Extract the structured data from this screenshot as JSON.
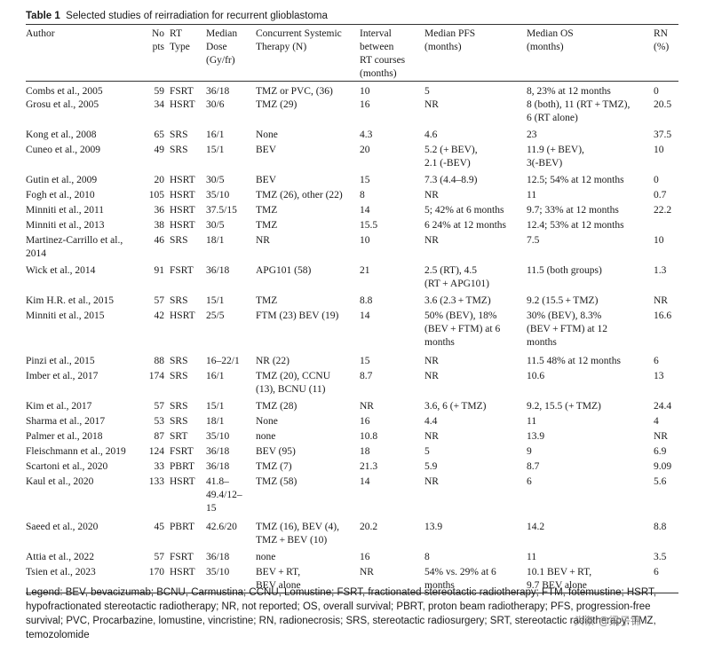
{
  "table": {
    "label": "Table 1",
    "caption": "Selected studies of reirradiation for recurrent glioblastoma",
    "headers": {
      "author": "Author",
      "pts": [
        "No",
        "pts"
      ],
      "rt_type": [
        "RT",
        "Type"
      ],
      "dose": [
        "Median",
        "Dose",
        "(Gy/fr)"
      ],
      "therapy": [
        "Concurrent Systemic",
        "Therapy (N)"
      ],
      "interval": [
        "Interval",
        "between",
        "RT courses",
        "(months)"
      ],
      "pfs": [
        "Median PFS",
        "(months)"
      ],
      "os": [
        "Median OS",
        "(months)"
      ],
      "rn": [
        "RN",
        "(%)"
      ]
    },
    "rows": [
      {
        "author": [
          "Combs et al., 2005"
        ],
        "pts": "59",
        "rt": "FSRT",
        "dose": [
          "36/18"
        ],
        "therapy": [
          "TMZ or PVC, (36)"
        ],
        "interval": "10",
        "pfs": [
          "5"
        ],
        "os": [
          "8, 23% at 12 months"
        ],
        "rn": "0"
      },
      {
        "author": [
          "Grosu et al., 2005"
        ],
        "pts": "34",
        "rt": "HSRT",
        "dose": [
          "30/6"
        ],
        "therapy": [
          "TMZ (29)"
        ],
        "interval": "16",
        "pfs": [
          "NR"
        ],
        "os": [
          "8 (both), 11 (RT + TMZ),",
          "6 (RT alone)"
        ],
        "rn": "20.5"
      },
      {
        "author": [
          "Kong et al., 2008"
        ],
        "pts": "65",
        "rt": "SRS",
        "dose": [
          "16/1"
        ],
        "therapy": [
          "None"
        ],
        "interval": "4.3",
        "pfs": [
          "4.6"
        ],
        "os": [
          "23"
        ],
        "rn": "37.5"
      },
      {
        "author": [
          "Cuneo et al., 2009"
        ],
        "pts": "49",
        "rt": "SRS",
        "dose": [
          "15/1"
        ],
        "therapy": [
          "BEV"
        ],
        "interval": "20",
        "pfs": [
          "5.2 (+ BEV),",
          "2.1 (-BEV)"
        ],
        "os": [
          "11.9 (+ BEV),",
          "3(-BEV)"
        ],
        "rn": "10"
      },
      {
        "author": [
          "Gutin et al., 2009"
        ],
        "pts": "20",
        "rt": "HSRT",
        "dose": [
          "30/5"
        ],
        "therapy": [
          "BEV"
        ],
        "interval": "15",
        "pfs": [
          "7.3 (4.4–8.9)"
        ],
        "os": [
          "12.5; 54% at 12 months"
        ],
        "rn": "0"
      },
      {
        "author": [
          "Fogh et al., 2010"
        ],
        "pts": "105",
        "rt": "HSRT",
        "dose": [
          "35/10"
        ],
        "therapy": [
          "TMZ (26), other (22)"
        ],
        "interval": "8",
        "pfs": [
          "NR"
        ],
        "os": [
          "11"
        ],
        "rn": "0.7"
      },
      {
        "author": [
          "Minniti et al., 2011"
        ],
        "pts": "36",
        "rt": "HSRT",
        "dose": [
          "37.5/15"
        ],
        "therapy": [
          "TMZ"
        ],
        "interval": "14",
        "pfs": [
          "5; 42% at 6 months"
        ],
        "os": [
          "9.7; 33% at 12 months"
        ],
        "rn": "22.2"
      },
      {
        "author": [
          "Minniti et al., 2013"
        ],
        "pts": "38",
        "rt": "HSRT",
        "dose": [
          "30/5"
        ],
        "therapy": [
          "TMZ"
        ],
        "interval": "15.5",
        "pfs": [
          "6 24% at 12 months"
        ],
        "os": [
          "12.4; 53% at 12 months"
        ],
        "rn": ""
      },
      {
        "author": [
          "Martinez-Carrillo et al.,",
          "2014"
        ],
        "pts": "46",
        "rt": "SRS",
        "dose": [
          "18/1"
        ],
        "therapy": [
          "NR"
        ],
        "interval": "10",
        "pfs": [
          "NR"
        ],
        "os": [
          "7.5"
        ],
        "rn": "10"
      },
      {
        "author": [
          "Wick et al., 2014"
        ],
        "pts": "91",
        "rt": "FSRT",
        "dose": [
          "36/18"
        ],
        "therapy": [
          "APG101 (58)"
        ],
        "interval": "21",
        "pfs": [
          "2.5 (RT), 4.5",
          "(RT + APG101)"
        ],
        "os": [
          "11.5 (both groups)"
        ],
        "rn": "1.3"
      },
      {
        "author": [
          "Kim H.R. et al., 2015"
        ],
        "pts": "57",
        "rt": "SRS",
        "dose": [
          "15/1"
        ],
        "therapy": [
          "TMZ"
        ],
        "interval": "8.8",
        "pfs": [
          "3.6 (2.3 + TMZ)"
        ],
        "os": [
          "9.2 (15.5 + TMZ)"
        ],
        "rn": "NR"
      },
      {
        "author": [
          "Minniti et al., 2015"
        ],
        "pts": "42",
        "rt": "HSRT",
        "dose": [
          "25/5"
        ],
        "therapy": [
          "FTM (23) BEV (19)"
        ],
        "interval": "14",
        "pfs": [
          "50% (BEV), 18%",
          "(BEV + FTM) at 6",
          "months"
        ],
        "os": [
          "30% (BEV), 8.3%",
          "(BEV + FTM) at 12",
          "months"
        ],
        "rn": "16.6"
      },
      {
        "author": [
          "Pinzi et al., 2015"
        ],
        "pts": "88",
        "rt": "SRS",
        "dose": [
          "16–22/1"
        ],
        "therapy": [
          "NR (22)"
        ],
        "interval": "15",
        "pfs": [
          "NR"
        ],
        "os": [
          "11.5 48% at 12 months"
        ],
        "rn": "6"
      },
      {
        "author": [
          "Imber et al., 2017"
        ],
        "pts": "174",
        "rt": "SRS",
        "dose": [
          "16/1"
        ],
        "therapy": [
          "TMZ (20), CCNU",
          "(13), BCNU (11)"
        ],
        "interval": "8.7",
        "pfs": [
          "NR"
        ],
        "os": [
          "10.6"
        ],
        "rn": "13"
      },
      {
        "author": [
          "Kim et al., 2017"
        ],
        "pts": "57",
        "rt": "SRS",
        "dose": [
          "15/1"
        ],
        "therapy": [
          "TMZ (28)"
        ],
        "interval": "NR",
        "pfs": [
          "3.6, 6 (+ TMZ)"
        ],
        "os": [
          "9.2, 15.5 (+ TMZ)"
        ],
        "rn": "24.4"
      },
      {
        "author": [
          "Sharma et al., 2017"
        ],
        "pts": "53",
        "rt": "SRS",
        "dose": [
          "18/1"
        ],
        "therapy": [
          "None"
        ],
        "interval": "16",
        "pfs": [
          "4.4"
        ],
        "os": [
          "11"
        ],
        "rn": "4"
      },
      {
        "author": [
          "Palmer et al., 2018"
        ],
        "pts": "87",
        "rt": "SRT",
        "dose": [
          "35/10"
        ],
        "therapy": [
          "none"
        ],
        "interval": "10.8",
        "pfs": [
          "NR"
        ],
        "os": [
          "13.9"
        ],
        "rn": "NR"
      },
      {
        "author": [
          "Fleischmann et al., 2019"
        ],
        "pts": "124",
        "rt": "FSRT",
        "dose": [
          "36/18"
        ],
        "therapy": [
          "BEV (95)"
        ],
        "interval": "18",
        "pfs": [
          "5"
        ],
        "os": [
          "9"
        ],
        "rn": "6.9"
      },
      {
        "author": [
          "Scartoni et al., 2020"
        ],
        "pts": "33",
        "rt": "PBRT",
        "dose": [
          "36/18"
        ],
        "therapy": [
          "TMZ (7)"
        ],
        "interval": "21.3",
        "pfs": [
          "5.9"
        ],
        "os": [
          "8.7"
        ],
        "rn": "9.09"
      },
      {
        "author": [
          "Kaul et al., 2020"
        ],
        "pts": "133",
        "rt": "HSRT",
        "dose": [
          "41.8–",
          "49.4/12–",
          "15"
        ],
        "therapy": [
          "TMZ (58)"
        ],
        "interval": "14",
        "pfs": [
          "NR"
        ],
        "os": [
          "6"
        ],
        "rn": "5.6"
      },
      {
        "author": [
          "Saeed et al., 2020"
        ],
        "pts": "45",
        "rt": "PBRT",
        "dose": [
          "42.6/20"
        ],
        "therapy": [
          "TMZ (16), BEV (4),",
          "TMZ + BEV (10)"
        ],
        "interval": "20.2",
        "pfs": [
          "13.9"
        ],
        "os": [
          "14.2"
        ],
        "rn": "8.8"
      },
      {
        "author": [
          "Attia et al., 2022"
        ],
        "pts": "57",
        "rt": "FSRT",
        "dose": [
          "36/18"
        ],
        "therapy": [
          "none"
        ],
        "interval": "16",
        "pfs": [
          "8"
        ],
        "os": [
          "11"
        ],
        "rn": "3.5"
      },
      {
        "author": [
          "Tsien et al., 2023"
        ],
        "pts": "170",
        "rt": "HSRT",
        "dose": [
          "35/10"
        ],
        "therapy": [
          "BEV + RT,",
          "BEV alone"
        ],
        "interval": "NR",
        "pfs": [
          "54% vs. 29% at 6",
          "months"
        ],
        "os": [
          "10.1 BEV + RT,",
          "9.7 BEV alone"
        ],
        "rn": "6"
      }
    ],
    "legend": [
      "Legend: BEV, bevacizumab; BCNU, Carmustina; CCNU, Lomustine; FSRT, fractionated stereotactic radiotherapy; FTM, fotemustine; HSRT,",
      "hypofractionated stereotactic radiotherapy; NR, not reported; OS, overall survival; PBRT, proton beam radiotherapy; PFS, progression-free",
      "survival; PVC, Procarbazine, lomustine, vincristine; RN, radionecrosis; SRS, stereotactic radiosurgery; SRT, stereotactic radiotherapy; TMZ,",
      "temozolomide"
    ]
  },
  "watermark": "头条 @梁子锦"
}
